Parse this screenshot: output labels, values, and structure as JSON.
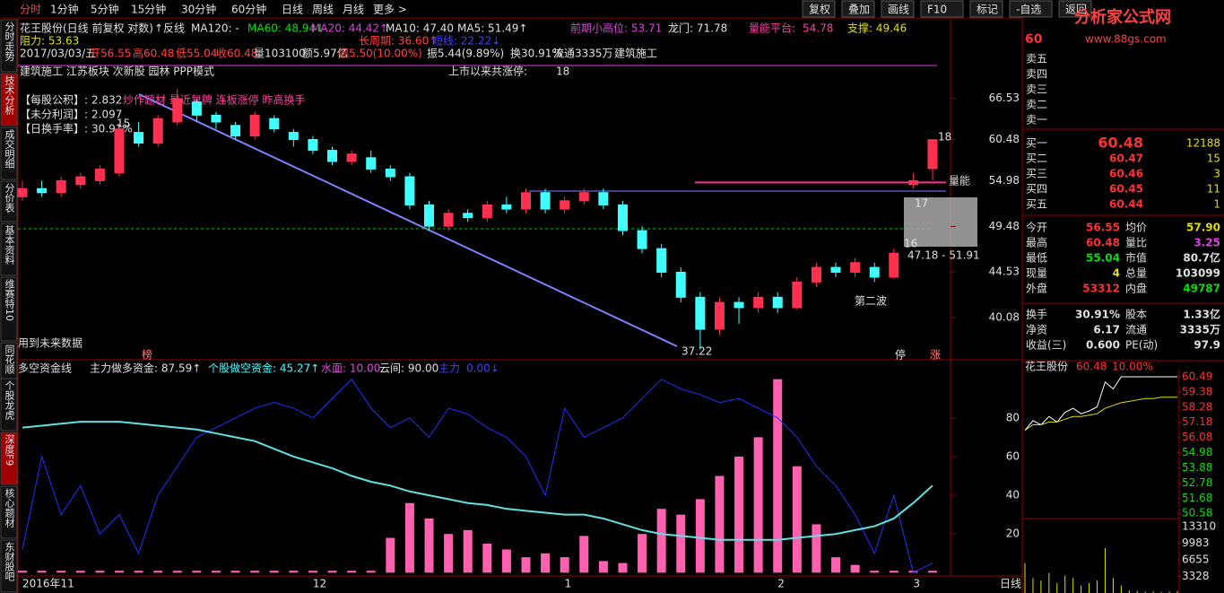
{
  "toolbar": {
    "periods": [
      "分时",
      "1分钟",
      "5分钟",
      "15分钟",
      "30分钟",
      "60分钟",
      "日线",
      "周线",
      "月线",
      "更多 >"
    ],
    "buttons": [
      "复权",
      "叠加",
      "画线",
      "F10",
      "标记",
      "-自选",
      "返回"
    ]
  },
  "side_tabs": [
    "分时走势",
    "技术分析",
    "成交明细",
    "分价表",
    "基本资料",
    "维赛特10",
    "同花顺"
  ],
  "bottom_side_tabs": [
    "个股龙虎",
    "深度F9",
    "核心题材",
    "东财股吧"
  ],
  "header": {
    "name": "花王股份(日线 前复权 对数)",
    "fanxian": "↑反线",
    "ma120": "MA120: -",
    "ma60": "MA60: 48.94↓",
    "ma20": "MA20: 44.42↑",
    "ma10": "MA10: 47.40",
    "ma5": "MA5: 51.49↑",
    "prev_high": "前期小高位: 53.71",
    "longmen": "龙门: 71.78",
    "platform": {
      "label": "量能平台:",
      "value": 54.78
    },
    "support": "支撑: 49.46",
    "resistance": "阻力: 53.63",
    "long_cycle": "长周期: 36.60↑",
    "short_line": "短线: 22.22↓"
  },
  "quote_line": [
    "2017/03/03/五",
    "开56.55",
    "高60.48",
    "低55.04",
    "收60.48",
    "量103100",
    "额5.97亿",
    "幅5.50(10.00%)",
    "振5.44(9.89%)",
    "换30.91%",
    "流通3335万",
    "建筑施工"
  ],
  "concepts": "建筑施工 江苏板块 次新股 园林 PPP模式",
  "limit_up": {
    "label": "上市以来共涨停:",
    "value": "18"
  },
  "fundamentals": [
    {
      "label": "【每股公积】:",
      "value": "2.832"
    },
    {
      "label": "【未分利润】:",
      "value": "2.097"
    },
    {
      "label": "【日换手率】:",
      "value": "30.91%"
    }
  ],
  "theme": "炒作题材 最近复牌 连板涨停 昨高换手",
  "annotations": {
    "n18": "18",
    "liangneng": "量能",
    "n17": "17",
    "n16": "16",
    "range": "47.18 - 51.91",
    "second_wave": "第二波",
    "low": "37.22",
    "n15": "15",
    "future": "用到未来数据",
    "bang": "榜",
    "ting": "停",
    "zhang": "涨"
  },
  "kline": {
    "log_scale": true,
    "ylim": [
      36.8,
      78.5
    ],
    "yticks": [
      66.53,
      60.48,
      54.98,
      49.48,
      44.53,
      40.08
    ],
    "candles": [
      [
        53,
        54,
        55,
        52.5
      ],
      [
        54,
        53.5,
        55,
        53
      ],
      [
        53.5,
        55,
        55.5,
        53
      ],
      [
        54.5,
        55.5,
        56,
        54
      ],
      [
        55,
        56.5,
        57,
        54.5
      ],
      [
        56,
        62,
        62.5,
        55.5
      ],
      [
        61.5,
        60,
        63,
        59.5
      ],
      [
        60,
        63.5,
        64,
        59.5
      ],
      [
        63,
        66.5,
        68,
        62.5
      ],
      [
        66,
        64,
        66.5,
        63
      ],
      [
        64,
        63,
        64.5,
        62
      ],
      [
        62.5,
        61,
        63,
        60.5
      ],
      [
        61,
        64,
        64.5,
        60.5
      ],
      [
        63.5,
        62,
        64,
        61.5
      ],
      [
        61.5,
        60.5,
        62,
        59.5
      ],
      [
        60.5,
        59,
        61,
        58.5
      ],
      [
        59,
        57.5,
        59.5,
        57
      ],
      [
        57.5,
        58.5,
        59,
        57
      ],
      [
        58,
        56.5,
        59,
        56
      ],
      [
        56.5,
        55.5,
        57,
        55
      ],
      [
        55.5,
        52,
        56,
        51.5
      ],
      [
        52,
        49.5,
        52.5,
        49
      ],
      [
        49.5,
        51,
        51.5,
        49
      ],
      [
        51,
        50.5,
        51.5,
        50
      ],
      [
        50.5,
        52,
        52.5,
        50
      ],
      [
        52,
        51.5,
        53,
        51
      ],
      [
        51.5,
        53.5,
        54,
        51
      ],
      [
        53.5,
        51.5,
        54,
        51
      ],
      [
        51.5,
        52.5,
        53,
        51
      ],
      [
        52.5,
        53.5,
        54,
        52
      ],
      [
        53.5,
        52,
        54,
        51.5
      ],
      [
        52,
        49,
        52.5,
        48.5
      ],
      [
        49,
        47,
        49.5,
        46.5
      ],
      [
        47,
        44.5,
        47.5,
        44
      ],
      [
        44.5,
        42,
        45,
        41.5
      ],
      [
        42,
        39,
        42.5,
        37.22
      ],
      [
        39,
        41.5,
        42,
        38.5
      ],
      [
        41.5,
        41,
        42,
        39.5
      ],
      [
        41,
        42,
        42.5,
        40.5
      ],
      [
        42,
        41,
        42.5,
        40.5
      ],
      [
        41,
        43.5,
        44,
        40.8
      ],
      [
        43.5,
        45,
        45.5,
        43
      ],
      [
        45,
        44.5,
        45.5,
        44
      ],
      [
        44.5,
        45.5,
        46,
        44
      ],
      [
        45,
        44,
        45.5,
        43.5
      ],
      [
        44,
        46.5,
        47,
        43.8
      ],
      [
        54.5,
        55,
        56,
        54
      ],
      [
        56.55,
        60.48,
        60.48,
        55.04
      ]
    ],
    "x_labels": [
      "2016年11",
      null,
      null,
      null,
      null,
      null,
      null,
      null,
      null,
      null,
      null,
      null,
      null,
      null,
      null,
      "12",
      null,
      null,
      null,
      null,
      null,
      null,
      null,
      null,
      null,
      null,
      null,
      null,
      "1",
      null,
      null,
      null,
      null,
      null,
      null,
      null,
      null,
      null,
      null,
      "2",
      null,
      null,
      null,
      null,
      null,
      null,
      "3",
      null
    ]
  },
  "indicator": {
    "title": "多空资金线",
    "main_long": "主力做多资金: 87.59↑",
    "stock_short": "个股做空资金: 45.27↑",
    "water": "水面: 10.00",
    "cloud": "云间: 90.00",
    "main": "主力",
    "main_val": "0.00↓",
    "ylim": [
      -0.3,
      108.2
    ],
    "yticks": [
      80,
      60,
      40,
      20
    ],
    "bars": [
      1,
      1,
      1,
      1,
      1,
      1,
      1,
      1,
      1,
      1,
      1,
      1,
      1,
      1,
      1,
      1,
      1,
      1,
      1,
      18,
      36,
      28,
      20,
      22,
      15,
      12,
      8,
      10,
      8,
      19,
      6,
      5,
      20,
      33,
      30,
      38,
      50,
      60,
      70,
      100,
      55,
      25,
      8,
      4,
      1,
      1,
      1,
      1
    ],
    "blue": [
      12,
      60,
      30,
      45,
      20,
      30,
      10,
      40,
      55,
      70,
      75,
      80,
      85,
      88,
      85,
      80,
      90,
      100,
      85,
      75,
      80,
      70,
      85,
      82,
      75,
      70,
      60,
      40,
      85,
      70,
      75,
      80,
      90,
      100,
      95,
      92,
      88,
      90,
      85,
      80,
      70,
      55,
      45,
      30,
      10,
      40,
      0,
      5
    ],
    "cyan": [
      75,
      76,
      77,
      78,
      78,
      78,
      77,
      76,
      75,
      74,
      72,
      70,
      68,
      64,
      60,
      57,
      54,
      50,
      47,
      45,
      42,
      40,
      38,
      36,
      35,
      33,
      32,
      31,
      30,
      30,
      28,
      25,
      22,
      20,
      19,
      18,
      17,
      17,
      17,
      17,
      18,
      19,
      20,
      22,
      24,
      28,
      36,
      45
    ]
  },
  "date_tab": "日线",
  "quote_panel": {
    "code": "60",
    "logo": "分析家公式网",
    "site": "www.88gs.com",
    "sell": [
      "卖五",
      "卖四",
      "卖三",
      "卖二",
      "卖一"
    ],
    "buy": [
      {
        "label": "买一",
        "price": "60.48",
        "vol": "12188"
      },
      {
        "label": "买二",
        "price": "60.47",
        "vol": "15"
      },
      {
        "label": "买三",
        "price": "60.46",
        "vol": "3"
      },
      {
        "label": "买四",
        "price": "60.45",
        "vol": "11"
      },
      {
        "label": "买五",
        "price": "60.44",
        "vol": "1"
      }
    ],
    "stats": [
      [
        "今开",
        "56.55",
        "均价",
        "57.90"
      ],
      [
        "最高",
        "60.48",
        "量比",
        "3.25"
      ],
      [
        "最低",
        "55.04",
        "市值",
        "80.7亿"
      ],
      [
        "现量",
        "4",
        "总量",
        "103099"
      ],
      [
        "外盘",
        "53312",
        "内盘",
        "49787"
      ],
      [
        "换手",
        "30.91%",
        "股本",
        "1.33亿"
      ],
      [
        "净资",
        "6.17",
        "流通",
        "3335万"
      ],
      [
        "收益(三)",
        "0.600",
        "PE(动)",
        "97.9"
      ]
    ]
  },
  "mini": {
    "name": "花王股份",
    "price": "60.48",
    "pct": "10.00%",
    "ylim": [
      50.2,
      61.0
    ],
    "vlim": [
      0,
      14540
    ],
    "price_ticks": [
      {
        "value": 60.49,
        "label": "60.49"
      },
      {
        "value": 59.38,
        "label": "59.38"
      },
      {
        "value": 58.28,
        "label": "58.28"
      },
      {
        "value": 57.18,
        "label": "57.18"
      },
      {
        "value": 56.08,
        "label": "56.08"
      },
      {
        "value": 54.98,
        "label": "54.98"
      },
      {
        "value": 53.88,
        "label": "53.88"
      },
      {
        "value": 52.78,
        "label": "52.78"
      },
      {
        "value": 51.68,
        "label": "51.68"
      },
      {
        "value": 50.58,
        "label": "50.58"
      }
    ],
    "vol_ticks": [
      13310,
      9983,
      6655,
      3328
    ],
    "prices": [
      56.6,
      57.3,
      57.0,
      57.6,
      57.2,
      57.9,
      58.2,
      57.8,
      58.0,
      58.3,
      60.1,
      59.6,
      60.48,
      60.48,
      60.48,
      60.48,
      60.48,
      60.48,
      60.48,
      60.48
    ],
    "avg": [
      56.6,
      57.0,
      57.0,
      57.2,
      57.2,
      57.4,
      57.6,
      57.6,
      57.7,
      57.8,
      58.2,
      58.4,
      58.6,
      58.7,
      58.8,
      58.9,
      58.9,
      59.0,
      59.0,
      59.0
    ],
    "volumes": [
      6000,
      3000,
      2500,
      4000,
      2000,
      3500,
      3000,
      1500,
      2000,
      2500,
      9000,
      3000,
      1500,
      500,
      400,
      300,
      300,
      200,
      300,
      400
    ]
  }
}
